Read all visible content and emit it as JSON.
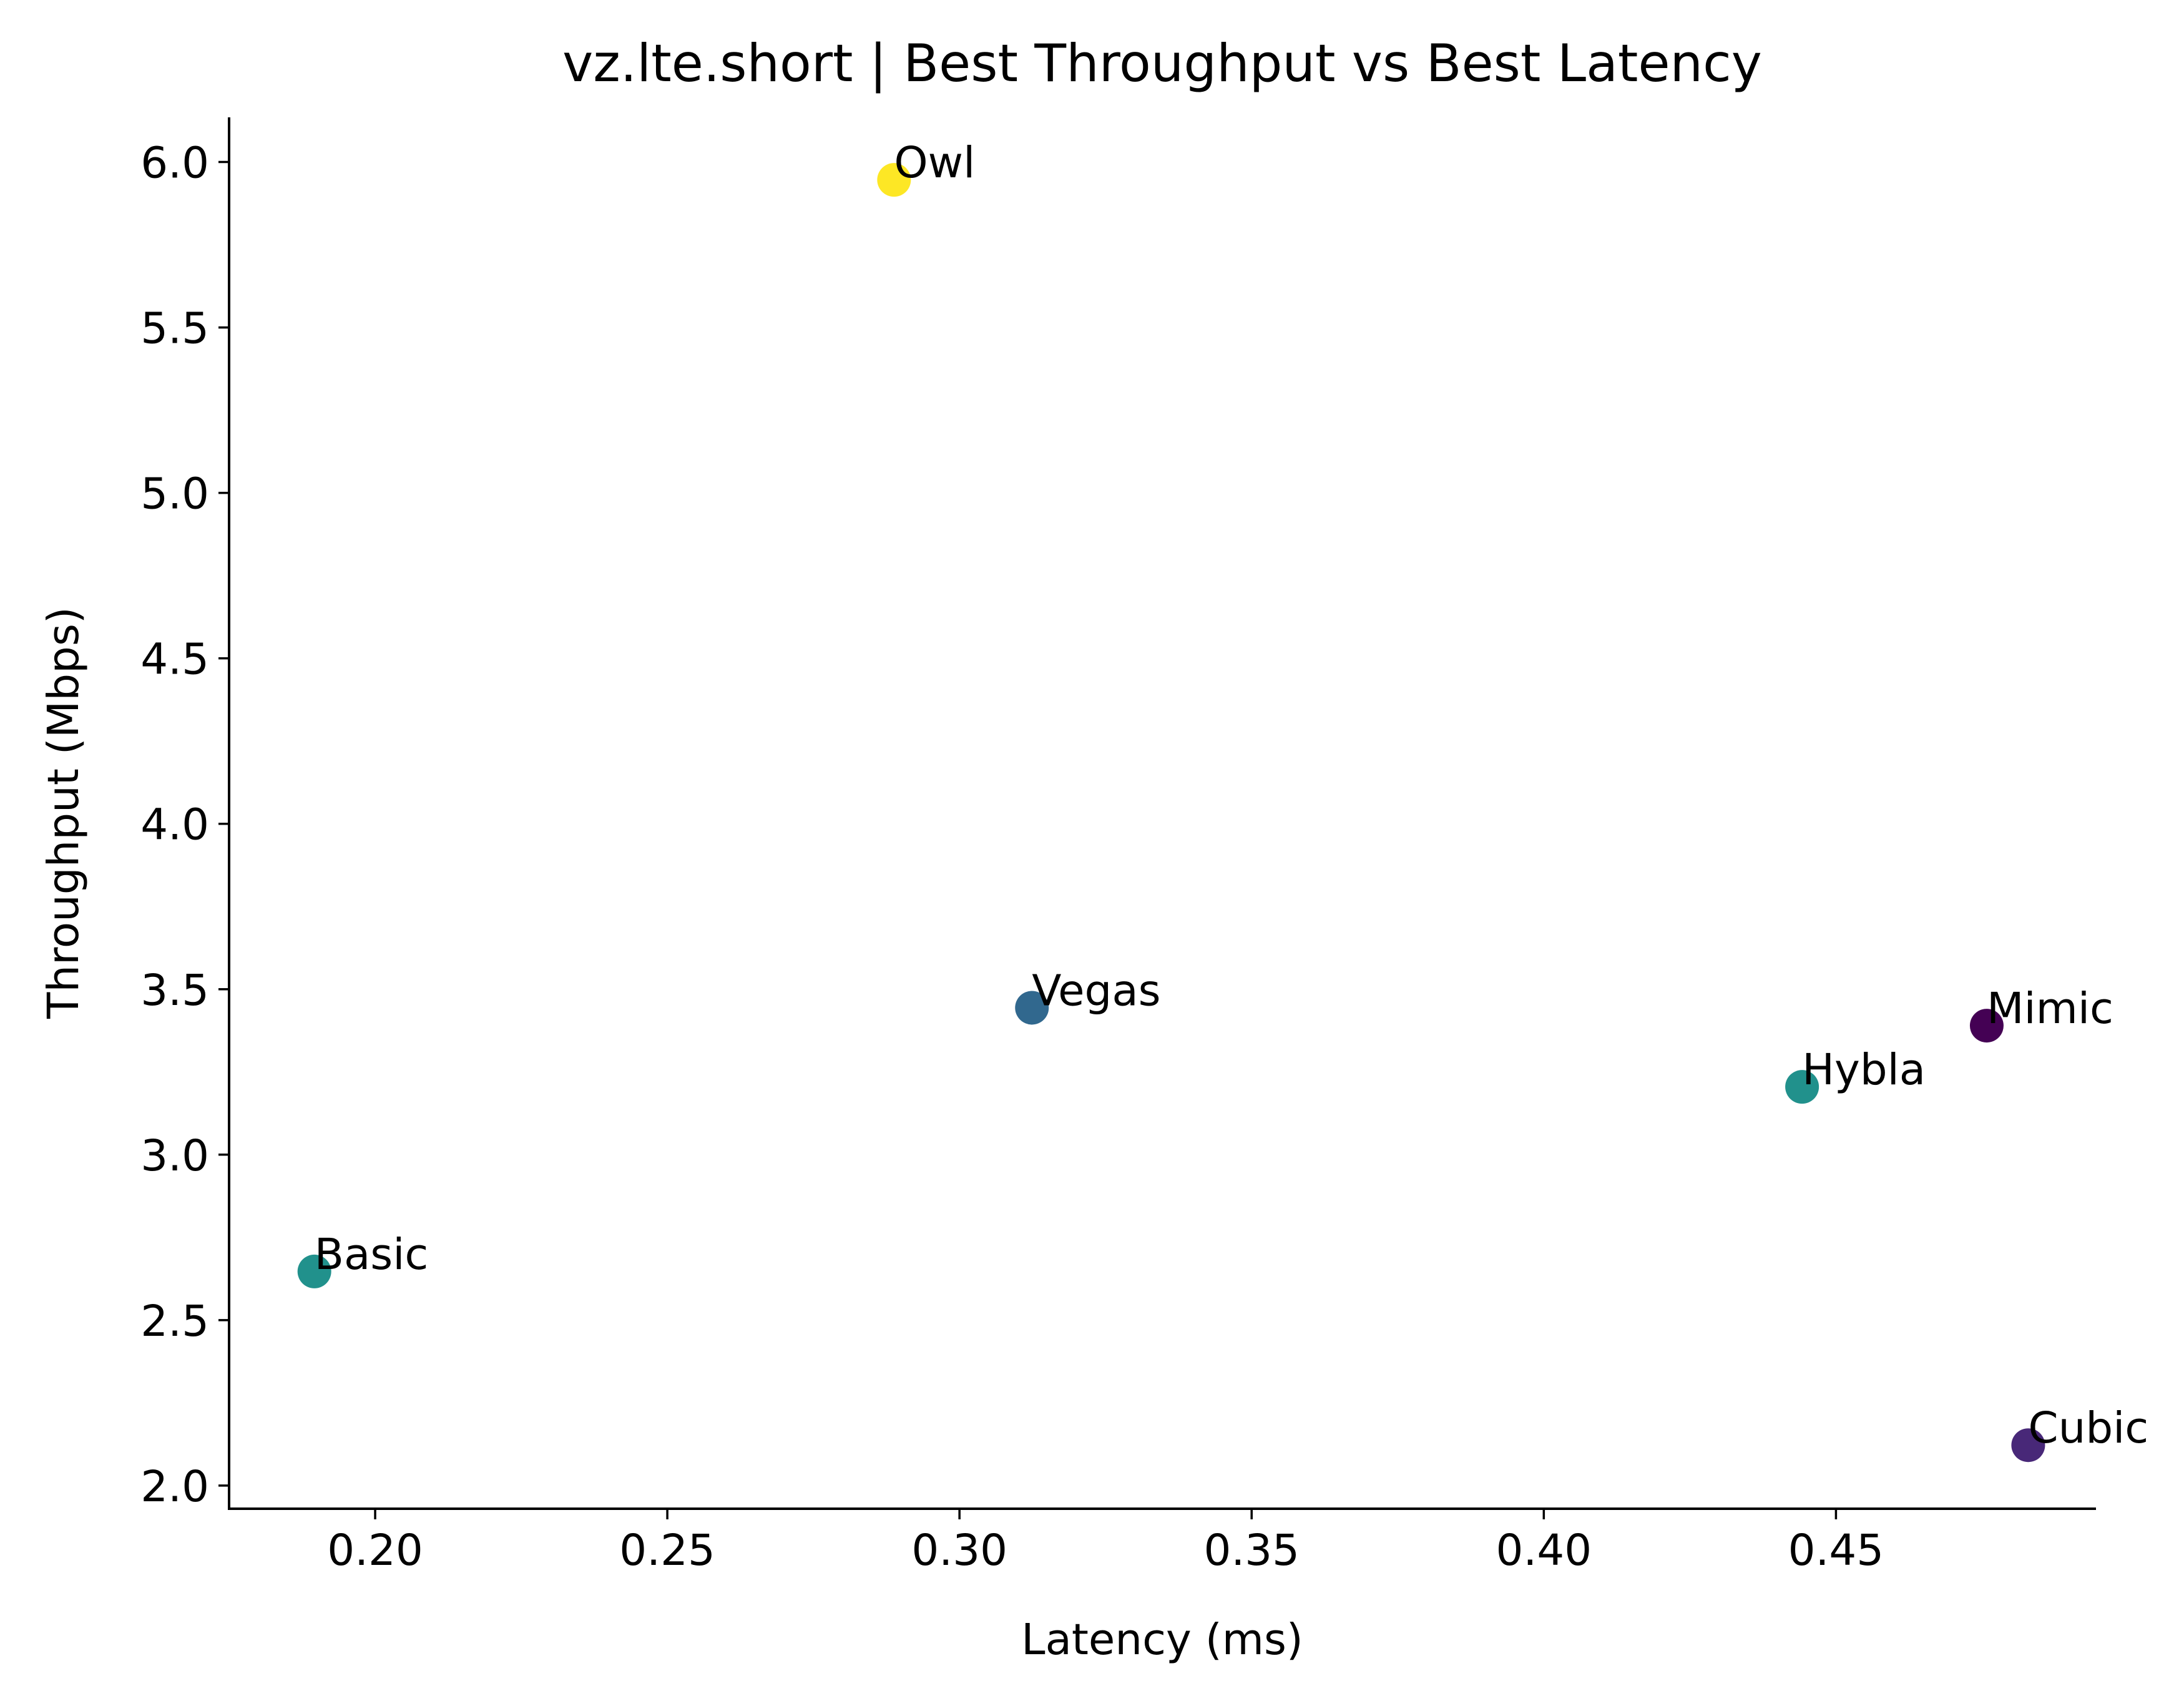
{
  "chart_data": {
    "type": "scatter",
    "title": "vz.lte.short | Best Throughput vs Best Latency",
    "xlabel": "Latency (ms)",
    "ylabel": "Throughput (Mbps)",
    "xlim": [
      0.175,
      0.4945
    ],
    "ylim": [
      1.93,
      6.135
    ],
    "xticks": [
      0.2,
      0.25,
      0.3,
      0.35,
      0.4,
      0.45
    ],
    "xtick_labels": [
      "0.20",
      "0.25",
      "0.30",
      "0.35",
      "0.40",
      "0.45"
    ],
    "yticks": [
      2.0,
      2.5,
      3.0,
      3.5,
      4.0,
      4.5,
      5.0,
      5.5,
      6.0
    ],
    "ytick_labels": [
      "2.0",
      "2.5",
      "3.0",
      "3.5",
      "4.0",
      "4.5",
      "5.0",
      "5.5",
      "6.0"
    ],
    "grid": false,
    "points": [
      {
        "label": "Owl",
        "x": 0.2888,
        "y": 5.946,
        "color": "#fde725"
      },
      {
        "label": "Vegas",
        "x": 0.3124,
        "y": 3.444,
        "color": "#31688e"
      },
      {
        "label": "Mimic",
        "x": 0.4758,
        "y": 3.39,
        "color": "#440154"
      },
      {
        "label": "Hybla",
        "x": 0.4442,
        "y": 3.205,
        "color": "#21918c"
      },
      {
        "label": "Basic",
        "x": 0.1896,
        "y": 2.647,
        "color": "#21918c"
      },
      {
        "label": "Cubic",
        "x": 0.4829,
        "y": 2.122,
        "color": "#482878"
      }
    ]
  }
}
